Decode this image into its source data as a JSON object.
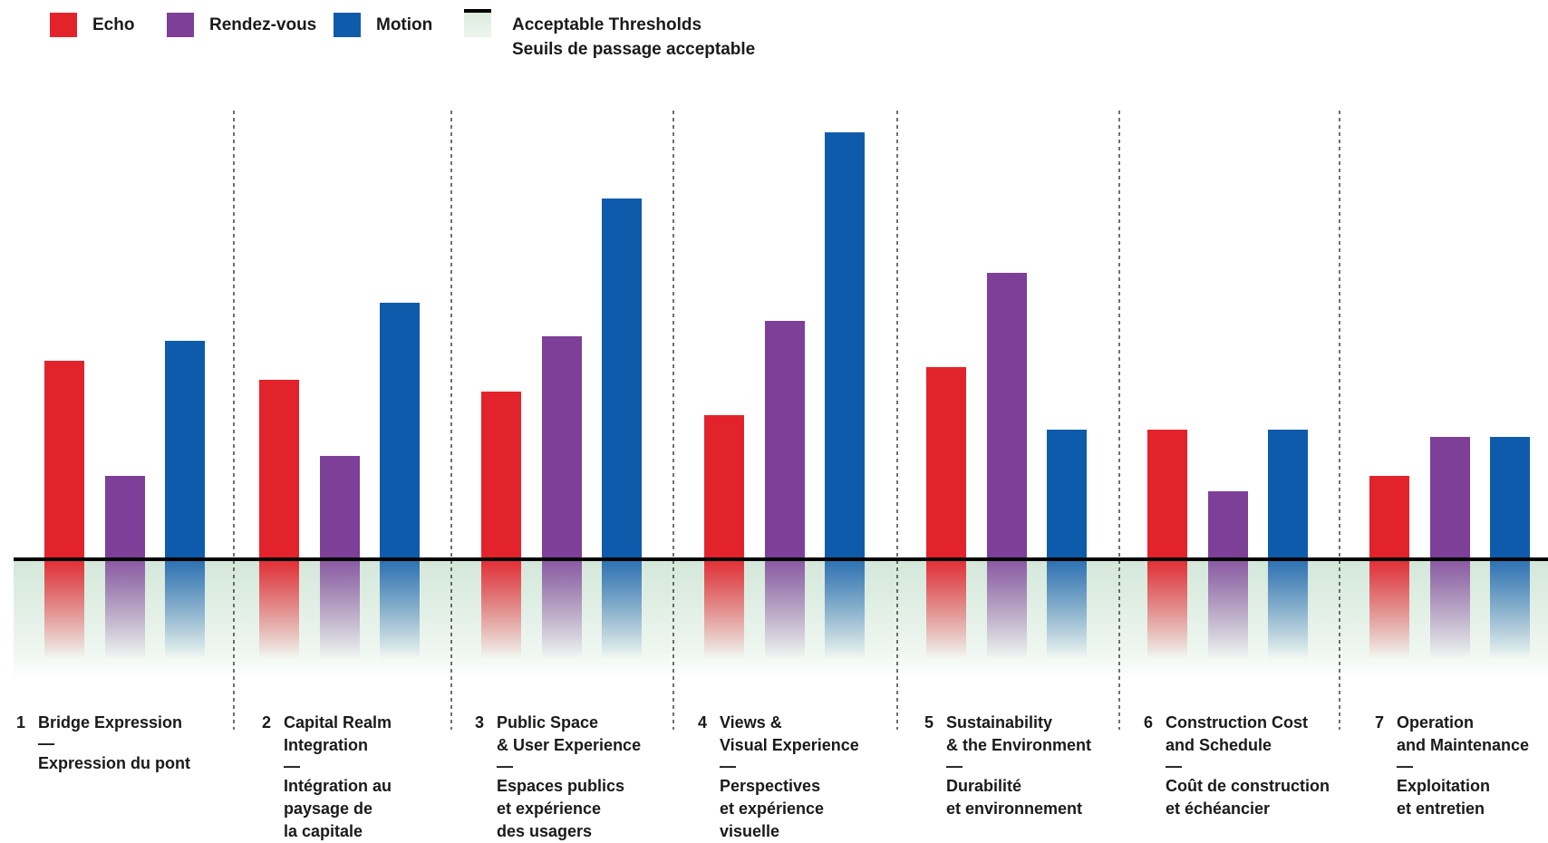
{
  "legend": {
    "series": [
      {
        "name": "Echo",
        "color": "#e3232c"
      },
      {
        "name": "Rendez-vous",
        "color": "#7d3f98"
      },
      {
        "name": "Motion",
        "color": "#0f5bab"
      }
    ],
    "threshold": {
      "line1": "Acceptable Thresholds",
      "line2": "Seuils de passage acceptable",
      "line_color": "#000000",
      "fill_color": "#dcebe0"
    }
  },
  "categories": [
    {
      "num": "1",
      "en": "Bridge Expression",
      "dash": "—",
      "fr": "Expression du pont"
    },
    {
      "num": "2",
      "en": "Capital Realm\nIntegration",
      "dash": "—",
      "fr": "Intégration au\npaysage de\nla capitale"
    },
    {
      "num": "3",
      "en": "Public Space\n& User Experience",
      "dash": "—",
      "fr": "Espaces publics\net expérience\ndes usagers"
    },
    {
      "num": "4",
      "en": "Views &\nVisual Experience",
      "dash": "—",
      "fr": "Perspectives\net expérience\nvisuelle"
    },
    {
      "num": "5",
      "en": "Sustainability\n& the Environment",
      "dash": "—",
      "fr": "Durabilité\net environnement"
    },
    {
      "num": "6",
      "en": "Construction Cost\nand Schedule",
      "dash": "—",
      "fr": "Coût de construction\net échéancier"
    },
    {
      "num": "7",
      "en": "Operation\nand Maintenance",
      "dash": "—",
      "fr": "Exploitation\net entretien"
    }
  ],
  "chart_data": {
    "type": "bar",
    "categories": [
      "Bridge Expression",
      "Capital Realm Integration",
      "Public Space & User Experience",
      "Views & Visual Experience",
      "Sustainability & the Environment",
      "Construction Cost and Schedule",
      "Operation and Maintenance"
    ],
    "series": [
      {
        "name": "Echo",
        "values": [
          219,
          198,
          185,
          159,
          212,
          143,
          92
        ]
      },
      {
        "name": "Rendez-vous",
        "values": [
          92,
          114,
          246,
          263,
          316,
          75,
          135
        ]
      },
      {
        "name": "Motion",
        "values": [
          241,
          283,
          398,
          471,
          143,
          143,
          135
        ]
      }
    ],
    "threshold": 0,
    "ylim": [
      -110,
      480
    ],
    "grid": false,
    "legend_position": "top-left"
  }
}
